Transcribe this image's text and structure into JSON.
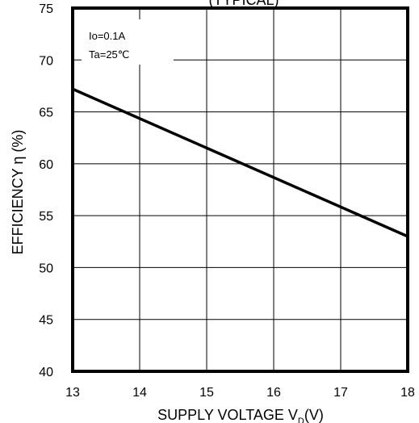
{
  "chart_data": {
    "type": "line",
    "title": "(TYPICAL)",
    "xlabel": "SUPPLY VOLTAGE V_D(V)",
    "xlabel_main": "SUPPLY VOLTAGE  V",
    "xlabel_sub": "D",
    "xlabel_unit": "(V)",
    "ylabel": "EFFICIENCY  η (%)",
    "xlim": [
      13,
      18
    ],
    "ylim": [
      40,
      75
    ],
    "x_ticks": [
      13,
      14,
      15,
      16,
      17,
      18
    ],
    "y_ticks": [
      40,
      45,
      50,
      55,
      60,
      65,
      70,
      75
    ],
    "x_tick_labels": [
      "13",
      "14",
      "15",
      "16",
      "17",
      "18"
    ],
    "y_tick_labels": [
      "40",
      "45",
      "50",
      "55",
      "60",
      "65",
      "70",
      "75"
    ],
    "grid": true,
    "annotations": [
      "Io=0.1A",
      "Ta=25℃"
    ],
    "series": [
      {
        "x": [
          13,
          18
        ],
        "y": [
          67.2,
          53.0
        ]
      }
    ]
  }
}
